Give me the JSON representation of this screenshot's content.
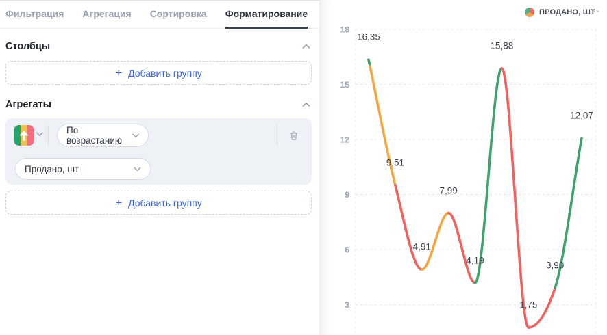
{
  "theme": {
    "accent": "#3D66DC",
    "card_bg": "#EEF1F5"
  },
  "left_panel": {
    "tabs": [
      {
        "label": "Фильтрация",
        "active": false
      },
      {
        "label": "Агрегация",
        "active": false
      },
      {
        "label": "Сортировка",
        "active": false
      },
      {
        "label": "Форматирование",
        "active": true
      }
    ],
    "columns": {
      "title": "Столбцы",
      "add_group_plus": "+",
      "add_group_label": "Добавить группу"
    },
    "aggregates": {
      "title": "Агрегаты",
      "sort_icon_colors": [
        "#27A36F",
        "#EFC14E",
        "#F56E7E"
      ],
      "sort_order_value": "По возрастанию",
      "field_value": "Продано, шт",
      "add_group_plus": "+",
      "add_group_label": "Добавить группу"
    }
  },
  "chart": {
    "legend_label": "ПРОДАНО, ШТ",
    "legend_pie": [
      "#F4625F",
      "#F2A24E",
      "#54B084"
    ],
    "menu_dots": "··"
  },
  "chart_data": {
    "type": "line",
    "series": [
      {
        "name": "Продано, шт",
        "values": [
          16.35,
          9.51,
          4.91,
          7.99,
          4.19,
          15.88,
          1.75,
          3.9,
          12.07
        ],
        "point_labels": [
          "16,35",
          "9,51",
          "4,91",
          "7,99",
          "4,19",
          "15,88",
          "1,75",
          "3,90",
          "12,07"
        ]
      }
    ],
    "y_ticks": [
      18,
      15,
      12,
      9,
      6,
      3
    ],
    "ylim": [
      1.5,
      18
    ],
    "x_axis_labels_visible": false,
    "grid": "dashed-horizontal",
    "legend_position": "top-right",
    "smoothing": "monotone-cubic",
    "segment_colors": [
      "orange",
      "red",
      "orange",
      "red",
      "green",
      "red",
      "red",
      "green"
    ],
    "palette": {
      "orange": "#F3A83F",
      "red": "#F4605D",
      "green": "#3FA26C"
    },
    "start_cap_color": "green"
  }
}
